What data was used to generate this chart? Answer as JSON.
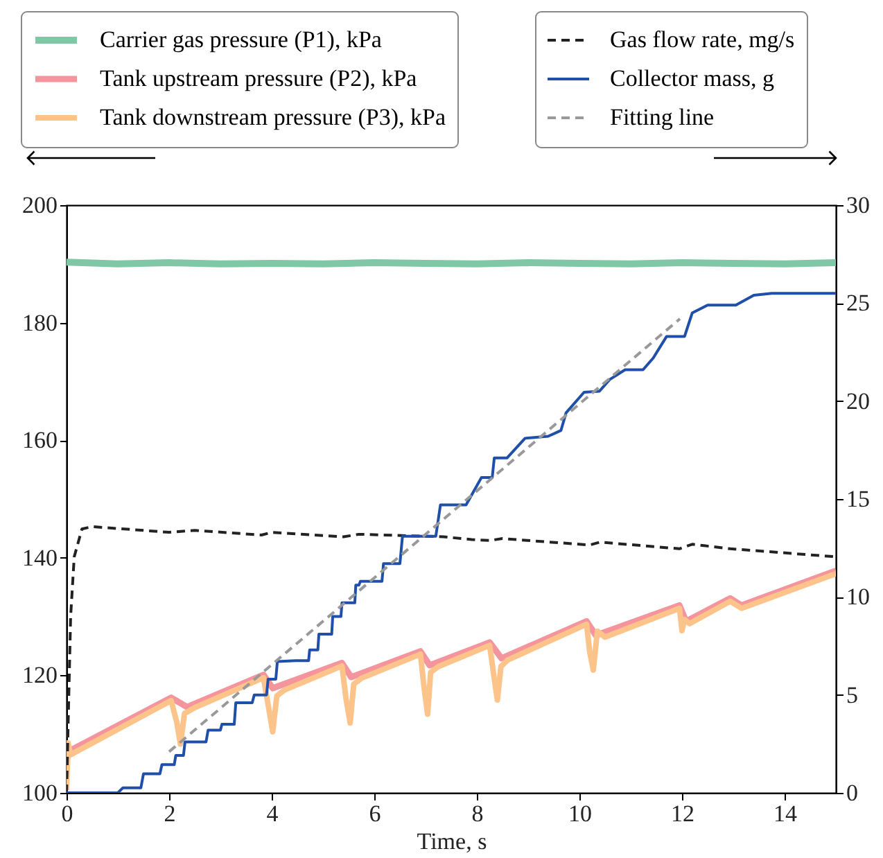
{
  "chart_data": {
    "type": "line",
    "xlabel": "Time, s",
    "xlim": [
      0,
      15
    ],
    "xticks": [
      0,
      2,
      4,
      6,
      8,
      10,
      12,
      14
    ],
    "ylim": [
      100,
      200
    ],
    "yticks": [
      100,
      120,
      140,
      160,
      180,
      200
    ],
    "y2lim": [
      0,
      30
    ],
    "y2ticks": [
      0,
      5,
      10,
      15,
      20,
      25,
      30
    ],
    "grid": false,
    "legend": "top",
    "series": [
      {
        "name": "Carrier gas pressure (P1), kPa",
        "color": "#80c8a5",
        "line_style": "solid",
        "x": [
          0,
          1,
          2,
          3,
          4,
          5,
          6,
          7,
          8,
          9,
          10,
          11,
          12,
          13,
          14,
          15
        ],
        "values": [
          190.3,
          190,
          190.2,
          190,
          190.1,
          190,
          190.2,
          190.1,
          190,
          190.2,
          190.1,
          190,
          190.2,
          190.1,
          190,
          190.2
        ]
      },
      {
        "name": "Tank upstream pressure (P2), kPa",
        "color": "#f4949c",
        "line_style": "solid",
        "x": [
          0,
          0.05,
          2.04,
          2.35,
          3.84,
          4.02,
          5.37,
          5.55,
          6.9,
          7.08,
          8.25,
          8.48,
          10.14,
          10.32,
          11.95,
          12.08,
          12.94,
          13.16,
          15
        ],
        "values": [
          105.5,
          107.1,
          116.2,
          114.6,
          120.1,
          117.8,
          122.1,
          119.7,
          124.1,
          121.7,
          125.6,
          122.9,
          129.2,
          126.8,
          131.9,
          129.2,
          133.1,
          131.9,
          137.8
        ]
      },
      {
        "name": "Tank downstream pressure (P3), kPa",
        "color": "#fcc48a",
        "line_style": "solid",
        "x": [
          0,
          0.03,
          0.08,
          2.04,
          2.15,
          2.22,
          2.3,
          2.5,
          3.84,
          3.95,
          4.02,
          4.1,
          4.25,
          5.37,
          5.45,
          5.53,
          5.6,
          5.75,
          6.9,
          6.97,
          7.04,
          7.1,
          7.25,
          8.25,
          8.33,
          8.4,
          8.47,
          8.6,
          10.14,
          10.2,
          10.27,
          10.35,
          10.5,
          11.95,
          12.0,
          12.05,
          12.15,
          12.94,
          13.16,
          15
        ],
        "values": [
          100.5,
          108.5,
          106.5,
          115.7,
          112,
          108.3,
          113.5,
          114.5,
          119.6,
          114,
          110.4,
          116.5,
          117.5,
          121.6,
          116,
          111.9,
          118.5,
          119.5,
          123.6,
          118,
          113.4,
          120.5,
          121.5,
          125.1,
          120,
          115.8,
          121.5,
          122.6,
          128.7,
          124,
          120.9,
          127.5,
          126.5,
          131.4,
          127.6,
          129.5,
          128.8,
          132.6,
          131.4,
          137.3
        ]
      },
      {
        "name": "Gas flow rate, mg/s",
        "color": "#222222",
        "line_style": "dashed",
        "axis": "y2",
        "x": [
          0,
          0.08,
          0.15,
          0.3,
          0.5,
          2.0,
          2.5,
          3.8,
          4.0,
          5.4,
          5.7,
          7.35,
          7.9,
          8.25,
          8.5,
          10.2,
          10.4,
          11.95,
          12.2,
          12.94,
          15
        ],
        "values": [
          0,
          9,
          12.05,
          13.47,
          13.59,
          13.3,
          13.4,
          13.16,
          13.3,
          13.07,
          13.2,
          13.07,
          12.93,
          12.88,
          12.98,
          12.65,
          12.8,
          12.46,
          12.69,
          12.46,
          12.05
        ]
      },
      {
        "name": "Collector mass, g",
        "color": "#1f4fa8",
        "line_style": "solid",
        "axis": "y2",
        "x": [
          0,
          1.0,
          1.1,
          1.45,
          1.5,
          1.82,
          1.86,
          2.1,
          2.13,
          2.28,
          2.31,
          2.72,
          2.76,
          3.0,
          3.03,
          3.27,
          3.3,
          3.62,
          3.66,
          3.9,
          3.93,
          4.08,
          4.11,
          4.47,
          4.72,
          4.74,
          4.9,
          4.92,
          5.17,
          5.19,
          5.35,
          5.37,
          5.62,
          5.64,
          5.7,
          5.73,
          6.15,
          6.18,
          6.5,
          6.55,
          7.2,
          7.29,
          7.79,
          8.09,
          8.3,
          8.34,
          8.59,
          8.94,
          9.39,
          9.64,
          9.74,
          10.09,
          10.39,
          10.59,
          10.89,
          11.24,
          11.44,
          11.7,
          12.05,
          12.2,
          12.5,
          13.05,
          13.4,
          13.75,
          15
        ],
        "values": [
          0,
          0,
          0.26,
          0.26,
          0.97,
          0.97,
          1.44,
          1.44,
          1.91,
          1.91,
          2.6,
          2.6,
          3.2,
          3.2,
          3.5,
          3.5,
          4.6,
          4.6,
          5.0,
          5.0,
          5.8,
          5.8,
          6.7,
          6.75,
          6.75,
          7.3,
          7.3,
          8.1,
          8.1,
          9.0,
          9.0,
          9.7,
          9.7,
          10.6,
          10.6,
          10.8,
          10.8,
          11.7,
          11.7,
          13.1,
          13.1,
          14.7,
          14.7,
          16.1,
          16.1,
          17.1,
          17.1,
          18.1,
          18.2,
          18.5,
          19.4,
          20.45,
          20.5,
          21.1,
          21.6,
          21.6,
          22.2,
          23.3,
          23.3,
          24.5,
          24.9,
          24.9,
          25.4,
          25.5,
          25.5
        ]
      },
      {
        "name": "Fitting line",
        "color": "#999999",
        "line_style": "dashed",
        "axis": "y2",
        "x": [
          2.0,
          11.96
        ],
        "values": [
          2.1,
          24.2
        ]
      }
    ]
  }
}
